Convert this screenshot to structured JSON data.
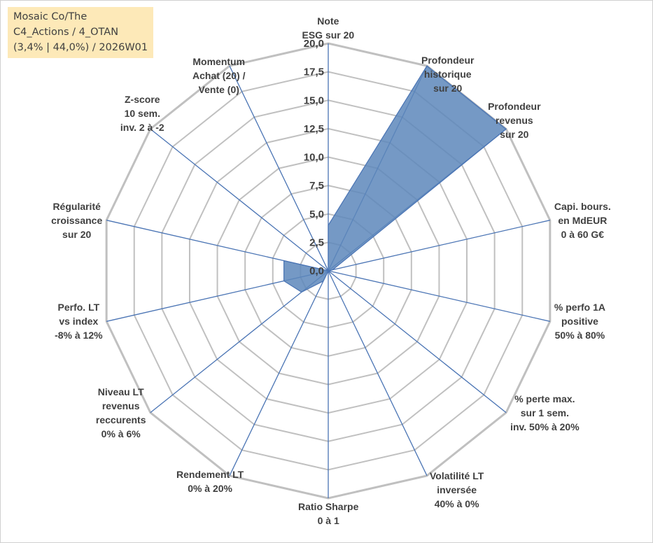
{
  "title": {
    "lines": [
      "Mosaic Co/The",
      "C4_Actions / 4_OTAN",
      "(3,4% | 44,0%) / 2026W01"
    ]
  },
  "colors": {
    "grid": "#c0c0c0",
    "spoke": "#4a74b4",
    "fill": "#5d87bb",
    "fill_stroke": "#4a74b4",
    "text": "#404040",
    "title_bg": "#fde9b8"
  },
  "chart_data": {
    "type": "radar",
    "rmin": 0,
    "rmax": 20,
    "rstep": 2.5,
    "tick_labels": [
      "0,0",
      "2,5",
      "5,0",
      "7,5",
      "10,0",
      "12,5",
      "15,0",
      "17,5",
      "20,0"
    ],
    "axes": [
      {
        "label": [
          "Note",
          "ESG sur 20"
        ],
        "value": 4.0
      },
      {
        "label": [
          "Profondeur",
          "historique",
          "sur 20"
        ],
        "value": 20.0
      },
      {
        "label": [
          "Profondeur",
          "revenus",
          "sur 20"
        ],
        "value": 20.0
      },
      {
        "label": [
          "Capi. bours.",
          "en MdEUR",
          "0 à 60 G€"
        ],
        "value": 0.4
      },
      {
        "label": [
          "% perfo 1A",
          "positive",
          "50% à 80%"
        ],
        "value": 0.0
      },
      {
        "label": [
          "% perte max.",
          "sur 1 sem.",
          "inv. 50% à 20%"
        ],
        "value": 0.0
      },
      {
        "label": [
          "Volatilité LT",
          "inversée",
          "40% à 0%"
        ],
        "value": 0.0
      },
      {
        "label": [
          "Ratio Sharpe",
          "0 à 1"
        ],
        "value": 0.0
      },
      {
        "label": [
          "Rendement LT",
          "0% à 20%"
        ],
        "value": 1.0
      },
      {
        "label": [
          "Niveau LT",
          "revenus",
          "reccurents",
          "0% à 6%"
        ],
        "value": 3.0
      },
      {
        "label": [
          "Perfo. LT",
          "vs index",
          "-8% à 12%"
        ],
        "value": 4.0
      },
      {
        "label": [
          "Régularité",
          "croissance",
          "sur 20"
        ],
        "value": 4.0
      },
      {
        "label": [
          "Z-score",
          "10 sem.",
          "inv. 2 à -2"
        ],
        "value": 0.0
      },
      {
        "label": [
          "Momentum",
          "Achat (20) /",
          "Vente (0)"
        ],
        "value": 0.0
      }
    ]
  }
}
